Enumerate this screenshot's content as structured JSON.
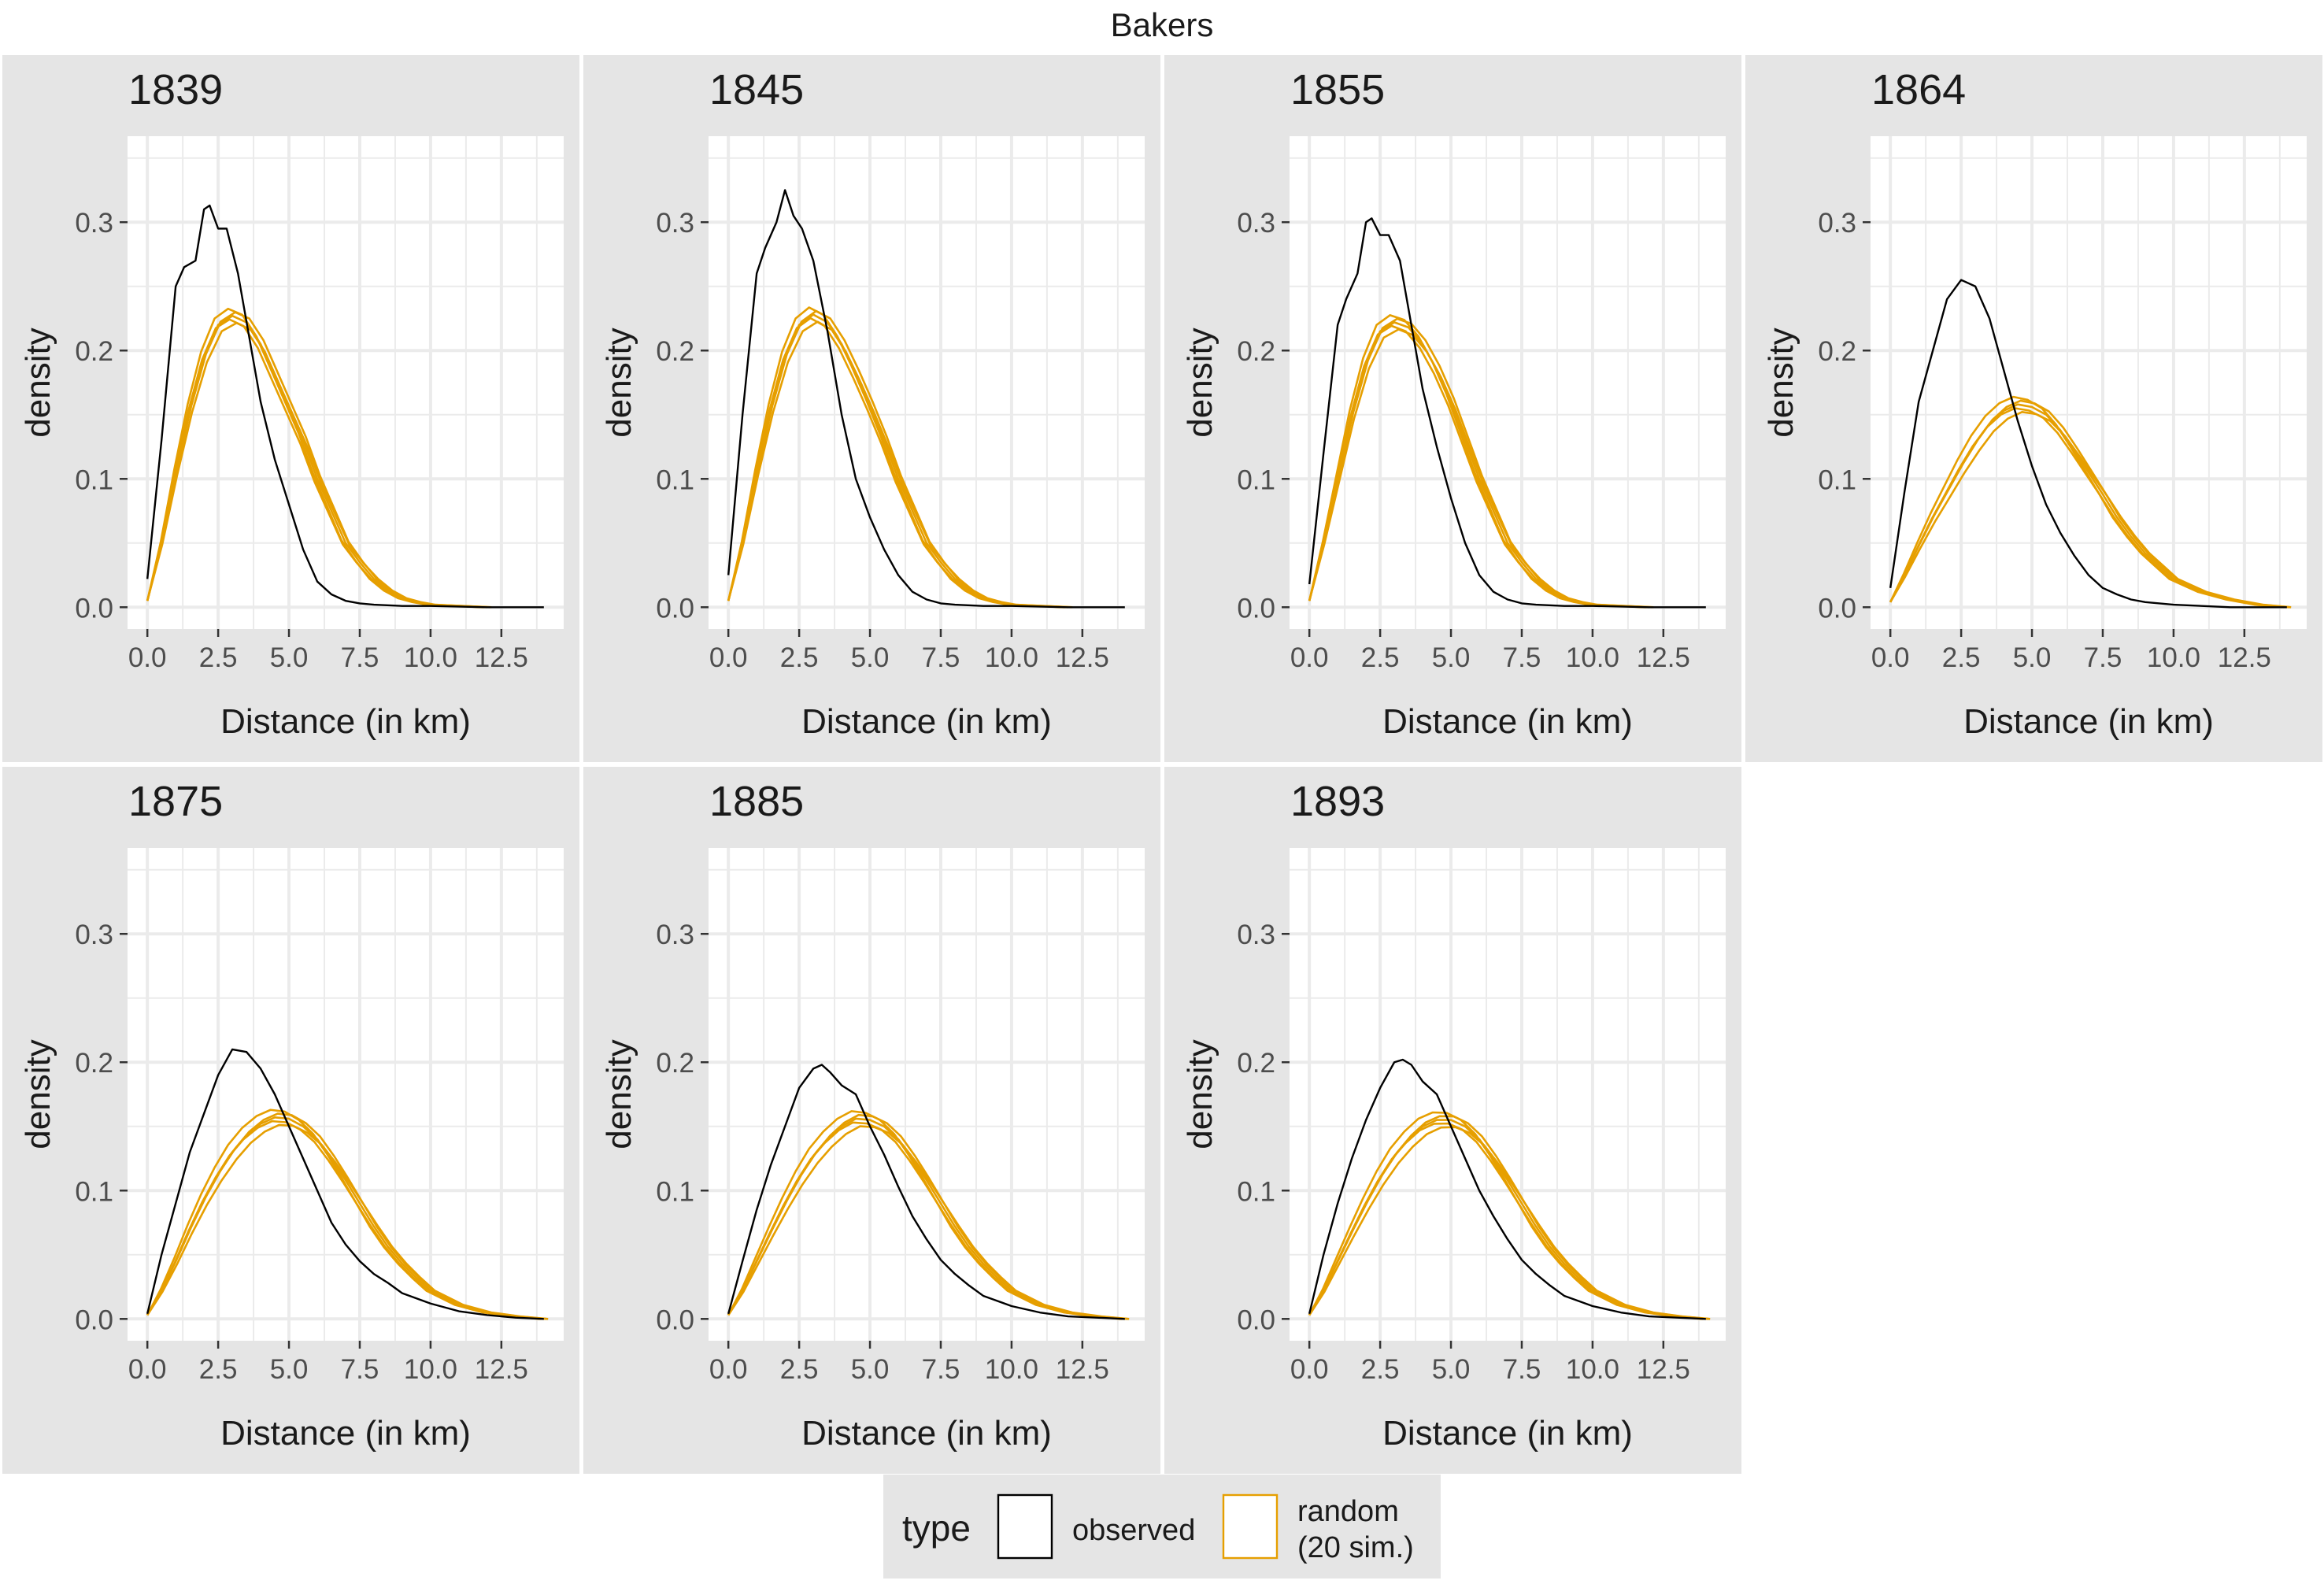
{
  "chart_data": {
    "type": "line",
    "title": "Bakers",
    "xlabel": "Distance (in km)",
    "ylabel": "density",
    "xlim": [
      -0.7,
      14.7
    ],
    "ylim": [
      -0.017,
      0.367
    ],
    "xticks": [
      "0.0",
      "2.5",
      "5.0",
      "7.5",
      "10.0",
      "12.5"
    ],
    "xtick_values": [
      0,
      2.5,
      5,
      7.5,
      10,
      12.5
    ],
    "yticks": [
      "0.0",
      "0.1",
      "0.2",
      "0.3"
    ],
    "ytick_values": [
      0,
      0.1,
      0.2,
      0.3
    ],
    "grid": true,
    "legend": {
      "position": "bottom",
      "title": "type",
      "entries": [
        {
          "label": "observed",
          "color": "#000000"
        },
        {
          "label": "random\n(20 sim.)",
          "color": "#E69F00"
        }
      ]
    },
    "colors": {
      "observed": "#000000",
      "random": "#E69F00",
      "panel_bg": "#FFFFFF",
      "strip_bg": "#E5E5E5",
      "grid": "#EBEBEB"
    },
    "panels": [
      {
        "year": "1839",
        "observed": {
          "x": [
            0,
            0.5,
            1,
            1.3,
            1.7,
            2,
            2.2,
            2.5,
            2.8,
            3.2,
            3.6,
            4,
            4.5,
            5,
            5.5,
            6,
            6.5,
            7,
            7.5,
            8,
            9,
            10,
            12,
            14
          ],
          "y": [
            0.022,
            0.13,
            0.25,
            0.265,
            0.27,
            0.31,
            0.313,
            0.295,
            0.295,
            0.26,
            0.21,
            0.16,
            0.115,
            0.08,
            0.045,
            0.02,
            0.01,
            0.005,
            0.003,
            0.002,
            0.001,
            0.001,
            0,
            0
          ]
        },
        "random": {
          "x": [
            0,
            0.5,
            1,
            1.5,
            2,
            2.5,
            3,
            3.5,
            4,
            4.5,
            5,
            5.5,
            6,
            6.5,
            7,
            7.5,
            8,
            8.5,
            9,
            9.5,
            10,
            11,
            12
          ],
          "y": [
            0.005,
            0.05,
            0.105,
            0.155,
            0.195,
            0.22,
            0.227,
            0.222,
            0.205,
            0.18,
            0.155,
            0.13,
            0.1,
            0.075,
            0.05,
            0.035,
            0.022,
            0.013,
            0.007,
            0.004,
            0.002,
            0.001,
            0
          ]
        }
      },
      {
        "year": "1845",
        "observed": {
          "x": [
            0,
            0.5,
            1,
            1.3,
            1.7,
            2,
            2.3,
            2.6,
            3,
            3.5,
            4,
            4.5,
            5,
            5.5,
            6,
            6.5,
            7,
            7.5,
            8,
            9,
            10,
            12,
            14
          ],
          "y": [
            0.025,
            0.15,
            0.26,
            0.28,
            0.3,
            0.325,
            0.305,
            0.295,
            0.27,
            0.215,
            0.15,
            0.1,
            0.07,
            0.045,
            0.025,
            0.012,
            0.006,
            0.003,
            0.002,
            0.001,
            0.001,
            0,
            0
          ]
        },
        "random": {
          "x": [
            0,
            0.5,
            1,
            1.5,
            2,
            2.5,
            3,
            3.5,
            4,
            4.5,
            5,
            5.5,
            6,
            6.5,
            7,
            7.5,
            8,
            8.5,
            9,
            9.5,
            10,
            11,
            12
          ],
          "y": [
            0.005,
            0.05,
            0.105,
            0.155,
            0.195,
            0.22,
            0.228,
            0.222,
            0.205,
            0.182,
            0.157,
            0.13,
            0.1,
            0.075,
            0.05,
            0.035,
            0.022,
            0.013,
            0.007,
            0.004,
            0.002,
            0.001,
            0
          ]
        }
      },
      {
        "year": "1855",
        "observed": {
          "x": [
            0,
            0.5,
            1,
            1.3,
            1.7,
            2,
            2.2,
            2.5,
            2.8,
            3.2,
            3.6,
            4,
            4.5,
            5,
            5.5,
            6,
            6.5,
            7,
            7.5,
            8,
            9,
            10,
            12,
            14
          ],
          "y": [
            0.018,
            0.12,
            0.22,
            0.24,
            0.26,
            0.3,
            0.303,
            0.29,
            0.29,
            0.27,
            0.22,
            0.17,
            0.125,
            0.085,
            0.05,
            0.025,
            0.012,
            0.006,
            0.003,
            0.002,
            0.001,
            0.001,
            0,
            0
          ]
        },
        "random": {
          "x": [
            0,
            0.5,
            1,
            1.5,
            2,
            2.5,
            3,
            3.5,
            4,
            4.5,
            5,
            5.5,
            6,
            6.5,
            7,
            7.5,
            8,
            8.5,
            9,
            9.5,
            10,
            11,
            12
          ],
          "y": [
            0.005,
            0.05,
            0.1,
            0.15,
            0.19,
            0.215,
            0.222,
            0.218,
            0.205,
            0.185,
            0.16,
            0.13,
            0.1,
            0.075,
            0.05,
            0.035,
            0.022,
            0.013,
            0.007,
            0.004,
            0.002,
            0.001,
            0
          ]
        }
      },
      {
        "year": "1864",
        "observed": {
          "x": [
            0,
            0.5,
            1,
            1.5,
            2,
            2.5,
            3,
            3.5,
            4,
            4.5,
            5,
            5.5,
            6,
            6.5,
            7,
            7.5,
            8,
            8.5,
            9,
            10,
            11,
            12,
            14
          ],
          "y": [
            0.015,
            0.09,
            0.16,
            0.2,
            0.24,
            0.255,
            0.25,
            0.225,
            0.185,
            0.145,
            0.11,
            0.08,
            0.058,
            0.04,
            0.025,
            0.015,
            0.01,
            0.006,
            0.004,
            0.002,
            0.001,
            0,
            0
          ]
        },
        "random": {
          "x": [
            0,
            0.5,
            1,
            1.5,
            2,
            2.5,
            3,
            3.5,
            4,
            4.5,
            5,
            5.5,
            6,
            6.5,
            7,
            7.5,
            8,
            8.5,
            9,
            9.5,
            10,
            11,
            12,
            13,
            14
          ],
          "y": [
            0.004,
            0.025,
            0.048,
            0.07,
            0.09,
            0.11,
            0.128,
            0.143,
            0.153,
            0.158,
            0.156,
            0.15,
            0.138,
            0.122,
            0.105,
            0.088,
            0.07,
            0.055,
            0.042,
            0.032,
            0.022,
            0.012,
            0.006,
            0.002,
            0
          ]
        }
      },
      {
        "year": "1875",
        "observed": {
          "x": [
            0,
            0.5,
            1,
            1.5,
            2,
            2.5,
            3,
            3.5,
            4,
            4.5,
            5,
            5.5,
            6,
            6.5,
            7,
            7.5,
            8,
            8.5,
            9,
            10,
            11,
            12,
            13,
            14
          ],
          "y": [
            0.004,
            0.05,
            0.09,
            0.13,
            0.16,
            0.19,
            0.21,
            0.208,
            0.195,
            0.175,
            0.15,
            0.125,
            0.1,
            0.075,
            0.058,
            0.045,
            0.035,
            0.028,
            0.02,
            0.012,
            0.006,
            0.003,
            0.001,
            0
          ]
        },
        "random": {
          "x": [
            0,
            0.5,
            1,
            1.5,
            2,
            2.5,
            3,
            3.5,
            4,
            4.5,
            5,
            5.5,
            6,
            6.5,
            7,
            7.5,
            8,
            8.5,
            9,
            9.5,
            10,
            11,
            12,
            13,
            14
          ],
          "y": [
            0.003,
            0.022,
            0.045,
            0.07,
            0.093,
            0.113,
            0.13,
            0.143,
            0.152,
            0.157,
            0.156,
            0.15,
            0.14,
            0.125,
            0.108,
            0.09,
            0.072,
            0.056,
            0.043,
            0.032,
            0.022,
            0.011,
            0.005,
            0.002,
            0
          ]
        }
      },
      {
        "year": "1885",
        "observed": {
          "x": [
            0,
            0.5,
            1,
            1.5,
            2,
            2.5,
            3,
            3.3,
            3.6,
            4,
            4.5,
            5,
            5.5,
            6,
            6.5,
            7,
            7.5,
            8,
            8.5,
            9,
            10,
            11,
            12,
            13,
            14
          ],
          "y": [
            0.004,
            0.045,
            0.085,
            0.12,
            0.15,
            0.18,
            0.195,
            0.198,
            0.192,
            0.182,
            0.175,
            0.15,
            0.128,
            0.103,
            0.08,
            0.062,
            0.046,
            0.035,
            0.026,
            0.018,
            0.01,
            0.005,
            0.002,
            0.001,
            0
          ]
        },
        "random": {
          "x": [
            0,
            0.5,
            1,
            1.5,
            2,
            2.5,
            3,
            3.5,
            4,
            4.5,
            5,
            5.5,
            6,
            6.5,
            7,
            7.5,
            8,
            8.5,
            9,
            9.5,
            10,
            11,
            12,
            13,
            14
          ],
          "y": [
            0.003,
            0.022,
            0.045,
            0.068,
            0.09,
            0.11,
            0.127,
            0.14,
            0.15,
            0.156,
            0.155,
            0.15,
            0.14,
            0.125,
            0.108,
            0.09,
            0.072,
            0.056,
            0.043,
            0.032,
            0.022,
            0.011,
            0.005,
            0.002,
            0
          ]
        }
      },
      {
        "year": "1893",
        "observed": {
          "x": [
            0,
            0.5,
            1,
            1.5,
            2,
            2.5,
            3,
            3.3,
            3.6,
            4,
            4.5,
            5,
            5.5,
            6,
            6.5,
            7,
            7.5,
            8,
            8.5,
            9,
            10,
            11,
            12,
            13,
            14
          ],
          "y": [
            0.004,
            0.05,
            0.09,
            0.125,
            0.155,
            0.18,
            0.2,
            0.202,
            0.198,
            0.185,
            0.175,
            0.15,
            0.125,
            0.1,
            0.08,
            0.062,
            0.046,
            0.035,
            0.026,
            0.018,
            0.01,
            0.005,
            0.002,
            0.001,
            0
          ]
        },
        "random": {
          "x": [
            0,
            0.5,
            1,
            1.5,
            2,
            2.5,
            3,
            3.5,
            4,
            4.5,
            5,
            5.5,
            6,
            6.5,
            7,
            7.5,
            8,
            8.5,
            9,
            9.5,
            10,
            11,
            12,
            13,
            14
          ],
          "y": [
            0.003,
            0.022,
            0.045,
            0.068,
            0.09,
            0.11,
            0.127,
            0.14,
            0.15,
            0.155,
            0.155,
            0.15,
            0.14,
            0.125,
            0.108,
            0.09,
            0.072,
            0.056,
            0.043,
            0.032,
            0.022,
            0.011,
            0.005,
            0.002,
            0
          ]
        }
      }
    ]
  }
}
